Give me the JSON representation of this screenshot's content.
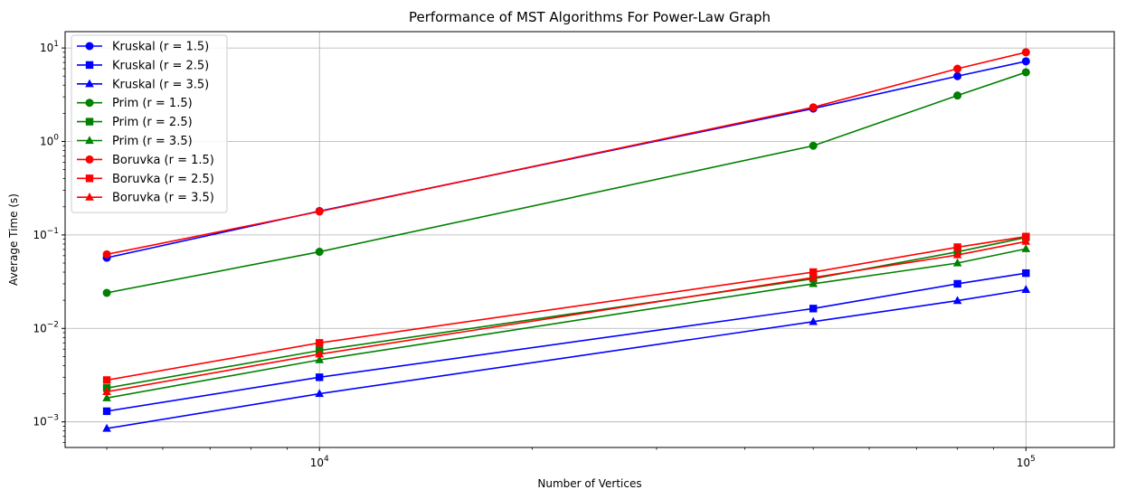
{
  "chart_data": {
    "type": "line",
    "title": "Performance of MST Algorithms For Power-Law Graph",
    "xlabel": "Number of Vertices",
    "ylabel": "Average Time (s)",
    "xscale": "log",
    "yscale": "log",
    "grid": true,
    "legend_position": "top-left",
    "x": [
      5000,
      10000,
      50000,
      80000,
      100000
    ],
    "x_major_ticks": [
      {
        "value": 10000,
        "base": "10",
        "exp": "4"
      },
      {
        "value": 100000,
        "base": "10",
        "exp": "5"
      }
    ],
    "y_major_ticks": [
      {
        "value": 0.001,
        "base": "10",
        "exp": "−3"
      },
      {
        "value": 0.01,
        "base": "10",
        "exp": "−2"
      },
      {
        "value": 0.1,
        "base": "10",
        "exp": "−1"
      },
      {
        "value": 1,
        "base": "10",
        "exp": "0"
      },
      {
        "value": 10,
        "base": "10",
        "exp": "1"
      }
    ],
    "series": [
      {
        "name": "Kruskal (r = 1.5)",
        "color": "#0000ff",
        "marker": "circle",
        "values": [
          0.057,
          0.18,
          2.25,
          5.0,
          7.2
        ]
      },
      {
        "name": "Kruskal (r = 2.5)",
        "color": "#0000ff",
        "marker": "square",
        "values": [
          0.0013,
          0.003,
          0.0163,
          0.03,
          0.039
        ]
      },
      {
        "name": "Kruskal (r = 3.5)",
        "color": "#0000ff",
        "marker": "triangle",
        "values": [
          0.00085,
          0.002,
          0.0118,
          0.0198,
          0.026
        ]
      },
      {
        "name": "Prim (r = 1.5)",
        "color": "#008000",
        "marker": "circle",
        "values": [
          0.024,
          0.066,
          0.9,
          3.1,
          5.5
        ]
      },
      {
        "name": "Prim (r = 2.5)",
        "color": "#008000",
        "marker": "square",
        "values": [
          0.0023,
          0.0058,
          0.034,
          0.066,
          0.094
        ]
      },
      {
        "name": "Prim (r = 3.5)",
        "color": "#008000",
        "marker": "triangle",
        "values": [
          0.0018,
          0.0046,
          0.03,
          0.05,
          0.071
        ]
      },
      {
        "name": "Boruvka (r = 1.5)",
        "color": "#ff0000",
        "marker": "circle",
        "values": [
          0.062,
          0.178,
          2.32,
          6.0,
          9.0
        ]
      },
      {
        "name": "Boruvka (r = 2.5)",
        "color": "#ff0000",
        "marker": "square",
        "values": [
          0.0028,
          0.007,
          0.04,
          0.074,
          0.096
        ]
      },
      {
        "name": "Boruvka (r = 3.5)",
        "color": "#ff0000",
        "marker": "triangle",
        "values": [
          0.0021,
          0.0053,
          0.035,
          0.061,
          0.085
        ]
      }
    ]
  }
}
